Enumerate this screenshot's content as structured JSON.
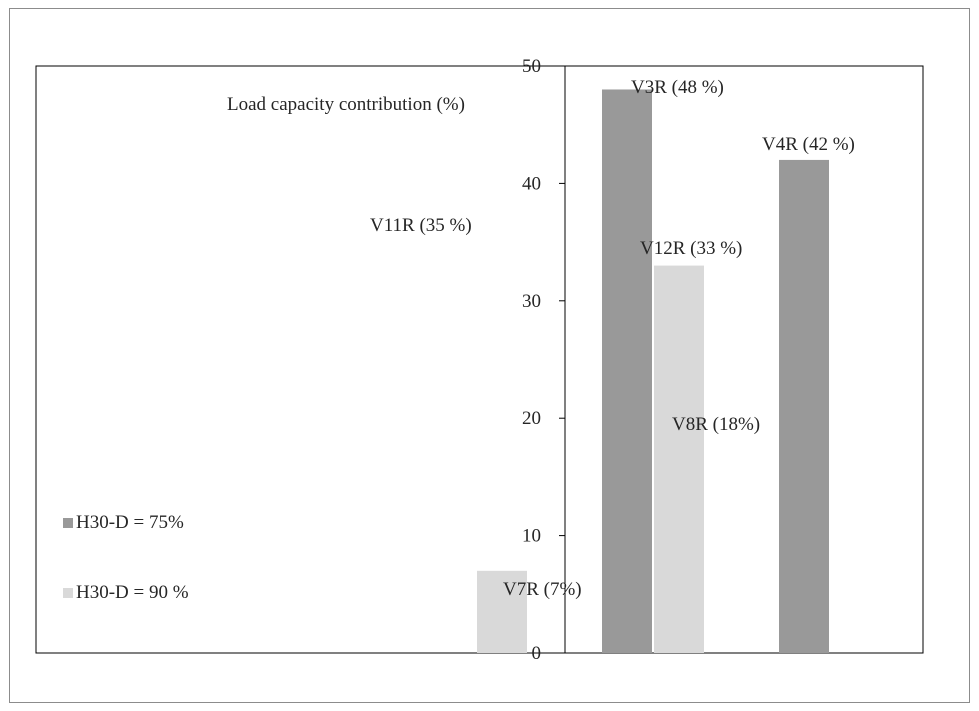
{
  "chart_data": {
    "type": "bar",
    "ylabel": "Load capacity contribution  (%)",
    "ylim": [
      0,
      50
    ],
    "yticks": [
      0,
      10,
      20,
      30,
      40,
      50
    ],
    "legend_position": "left",
    "series": [
      {
        "name": "H30-D = 75%",
        "color": "#999999",
        "points": [
          {
            "label": "V11R (35 %)",
            "value": 35
          },
          {
            "label": "V3R (48 %)",
            "value": 48
          },
          {
            "label": "V4R (42 %)",
            "value": 42
          }
        ]
      },
      {
        "name": "H30-D = 90 %",
        "color": "#d9d9d9",
        "points": [
          {
            "label": "V7R (7%)",
            "value": 7
          },
          {
            "label": "V12R (33 %)",
            "value": 33
          },
          {
            "label": "V8R (18%)",
            "value": 18
          }
        ]
      }
    ]
  }
}
